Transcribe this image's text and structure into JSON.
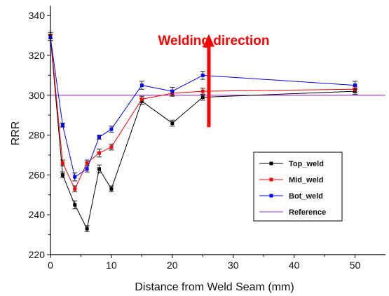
{
  "chart_data": {
    "type": "line",
    "xlabel": "Distance from Weld Seam (mm)",
    "ylabel": "RRR",
    "xlim": [
      0,
      55
    ],
    "ylim": [
      220,
      345
    ],
    "xticks": [
      0,
      10,
      20,
      30,
      40,
      50
    ],
    "yticks": [
      220,
      240,
      260,
      280,
      300,
      320,
      340
    ],
    "grid": false,
    "legend_position": "lower-right",
    "x": [
      0,
      2,
      4,
      6,
      8,
      10,
      15,
      20,
      25,
      50
    ],
    "series": [
      {
        "name": "Top_weld",
        "color": "#000000",
        "values": [
          329,
          260,
          245,
          233,
          263,
          253,
          297,
          286,
          299,
          302
        ],
        "errors": [
          1.5,
          1.5,
          2,
          1.5,
          2,
          1.5,
          1.5,
          1.5,
          1.5,
          1.5
        ]
      },
      {
        "name": "Mid_weld",
        "color": "#ff0000",
        "values": [
          330,
          266,
          253,
          266,
          271,
          274,
          298,
          301,
          302,
          303
        ],
        "errors": [
          1.5,
          1.5,
          1.5,
          1.5,
          2,
          1.5,
          1.5,
          1.5,
          1.5,
          1.5
        ]
      },
      {
        "name": "Bot_weld",
        "color": "#0000ff",
        "values": [
          329,
          285,
          259,
          263,
          279,
          283,
          305,
          302,
          310,
          305
        ],
        "errors": [
          1.5,
          1,
          2,
          1.5,
          1,
          1.5,
          2,
          2,
          2,
          2
        ]
      }
    ],
    "reference": {
      "name": "Reference",
      "color": "#9933cc",
      "value": 300
    },
    "annotation": {
      "text": "Welding direction",
      "color": "#ff0000",
      "arrow": {
        "x": 26,
        "y_from": 284,
        "y_to": 330
      }
    }
  }
}
